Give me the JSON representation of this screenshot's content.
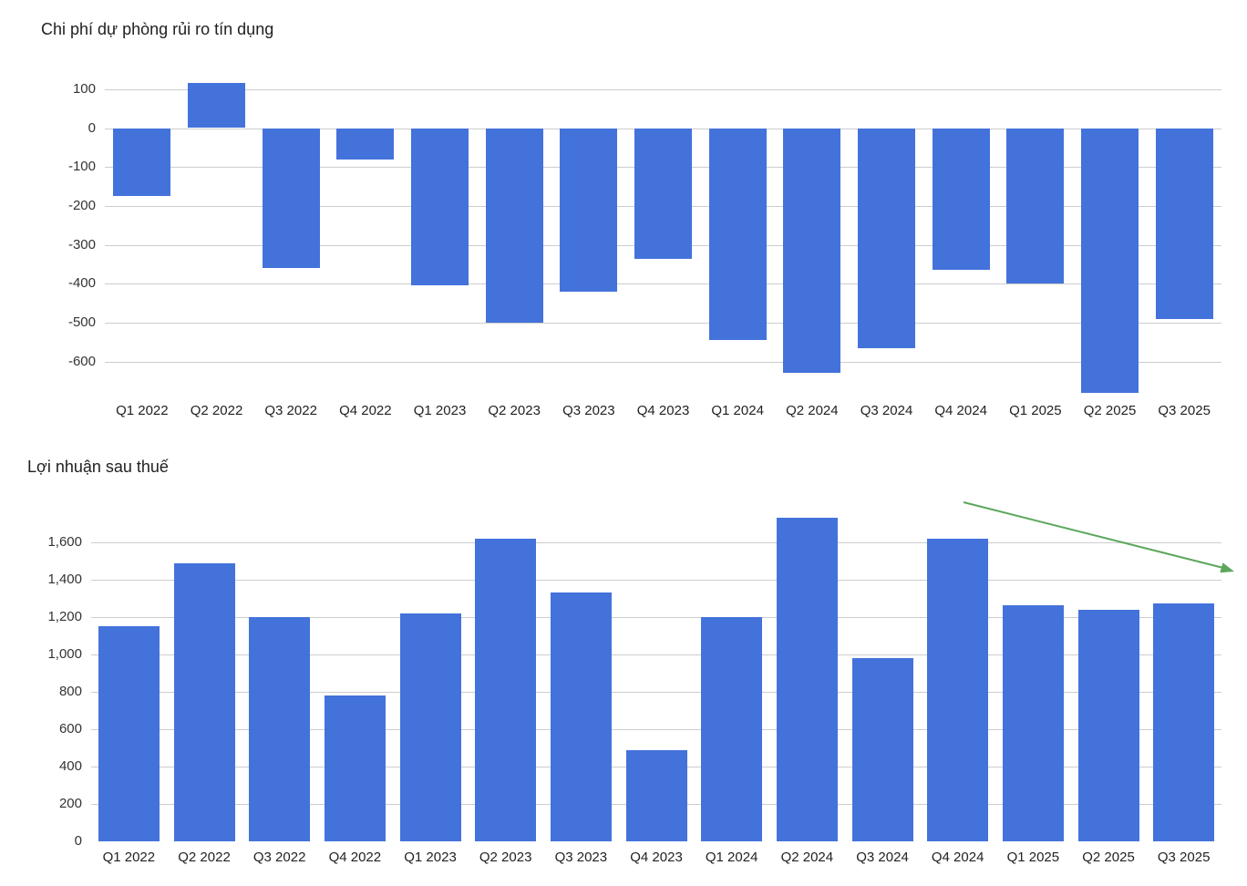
{
  "chart_data": [
    {
      "type": "bar",
      "title": "Chi phí dự phòng rủi ro tín dụng",
      "categories": [
        "Q1 2022",
        "Q2 2022",
        "Q3 2022",
        "Q4 2022",
        "Q1 2023",
        "Q2 2023",
        "Q3 2023",
        "Q4 2023",
        "Q1 2024",
        "Q2 2024",
        "Q3 2024",
        "Q4 2024",
        "Q1 2025",
        "Q2 2025",
        "Q3 2025"
      ],
      "values": [
        -175,
        115,
        -360,
        -80,
        -405,
        -500,
        -420,
        -335,
        -545,
        -630,
        -565,
        -365,
        -400,
        -680,
        -490
      ],
      "ylim": [
        -690,
        130
      ],
      "yticks": [
        {
          "value": 100,
          "label": "100"
        },
        {
          "value": 0,
          "label": "0"
        },
        {
          "value": -100,
          "label": "-100"
        },
        {
          "value": -200,
          "label": "-200"
        },
        {
          "value": -300,
          "label": "-300"
        },
        {
          "value": -400,
          "label": "-400"
        },
        {
          "value": -500,
          "label": "-500"
        },
        {
          "value": -600,
          "label": "-600"
        }
      ],
      "xlabel": "",
      "ylabel": "",
      "legend": "none",
      "grid": true,
      "bar_color": "#4472db",
      "gridline_color": "#cdcdcd"
    },
    {
      "type": "bar",
      "title": "Lợi nhuận sau thuế",
      "categories": [
        "Q1 2022",
        "Q2 2022",
        "Q3 2022",
        "Q4 2022",
        "Q1 2023",
        "Q2 2023",
        "Q3 2023",
        "Q4 2023",
        "Q1 2024",
        "Q2 2024",
        "Q3 2024",
        "Q4 2024",
        "Q1 2025",
        "Q2 2025",
        "Q3 2025"
      ],
      "values": [
        1150,
        1490,
        1200,
        780,
        1220,
        1620,
        1330,
        490,
        1200,
        1730,
        980,
        1620,
        1265,
        1240,
        1275
      ],
      "ylim": [
        0,
        1780
      ],
      "yticks": [
        {
          "value": 0,
          "label": "0"
        },
        {
          "value": 200,
          "label": "200"
        },
        {
          "value": 400,
          "label": "400"
        },
        {
          "value": 600,
          "label": "600"
        },
        {
          "value": 800,
          "label": "800"
        },
        {
          "value": 1000,
          "label": "1,000"
        },
        {
          "value": 1200,
          "label": "1,200"
        },
        {
          "value": 1400,
          "label": "1,400"
        },
        {
          "value": 1600,
          "label": "1,600"
        }
      ],
      "xlabel": "",
      "ylabel": "",
      "legend": "none",
      "grid": true,
      "bar_color": "#4472db",
      "gridline_color": "#cdcdcd",
      "annotation": {
        "type": "arrow",
        "color": "#5ca75c",
        "description": "green downward trend arrow over last quarters"
      }
    }
  ]
}
